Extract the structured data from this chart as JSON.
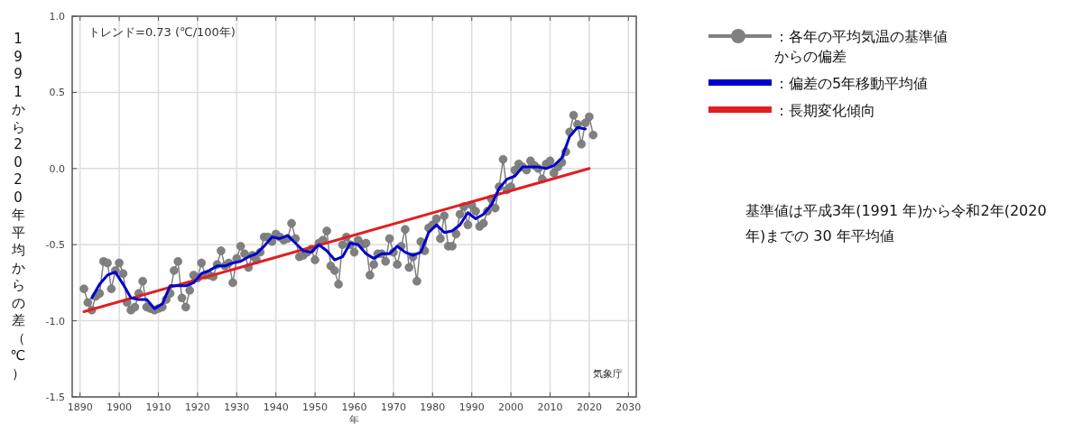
{
  "chart_data": {
    "type": "line",
    "xlabel": "年",
    "ylabel": "1991から2020年平均からの差（℃）",
    "xlim": [
      1888,
      2032
    ],
    "ylim": [
      -1.5,
      1.0
    ],
    "xticks": [
      1890,
      1900,
      1910,
      1920,
      1930,
      1940,
      1950,
      1960,
      1970,
      1980,
      1990,
      2000,
      2010,
      2020,
      2030
    ],
    "yticks": [
      {
        "value": -1.5,
        "label": "-1.5"
      },
      {
        "value": -1,
        "label": "-1.0"
      },
      {
        "value": -0.5,
        "label": "-0.5"
      },
      {
        "value": 0,
        "label": "0.0"
      },
      {
        "value": 0.5,
        "label": "0.5"
      },
      {
        "value": 1,
        "label": "1.0"
      }
    ],
    "grid": true,
    "legend": "right",
    "annotations": [
      "トレンド=0.73 (℃/100年)",
      "気象庁",
      "基準値は平成3年(1991 年)から令和2年(2020 年)までの 30 年平均値"
    ],
    "series": [
      {
        "name": "：各年の平均気温の基準値からの偏差",
        "color": "#808080",
        "marker": "circle",
        "x": [
          1891,
          1892,
          1893,
          1894,
          1895,
          1896,
          1897,
          1898,
          1899,
          1900,
          1901,
          1902,
          1903,
          1904,
          1905,
          1906,
          1907,
          1908,
          1909,
          1910,
          1911,
          1912,
          1913,
          1914,
          1915,
          1916,
          1917,
          1918,
          1919,
          1920,
          1921,
          1922,
          1923,
          1924,
          1925,
          1926,
          1927,
          1928,
          1929,
          1930,
          1931,
          1932,
          1933,
          1934,
          1935,
          1936,
          1937,
          1938,
          1939,
          1940,
          1941,
          1942,
          1943,
          1944,
          1945,
          1946,
          1947,
          1948,
          1949,
          1950,
          1951,
          1952,
          1953,
          1954,
          1955,
          1956,
          1957,
          1958,
          1959,
          1960,
          1961,
          1962,
          1963,
          1964,
          1965,
          1966,
          1967,
          1968,
          1969,
          1970,
          1971,
          1972,
          1973,
          1974,
          1975,
          1976,
          1977,
          1978,
          1979,
          1980,
          1981,
          1982,
          1983,
          1984,
          1985,
          1986,
          1987,
          1988,
          1989,
          1990,
          1991,
          1992,
          1993,
          1994,
          1995,
          1996,
          1997,
          1998,
          1999,
          2000,
          2001,
          2002,
          2003,
          2004,
          2005,
          2006,
          2007,
          2008,
          2009,
          2010,
          2011,
          2012,
          2013,
          2014,
          2015,
          2016,
          2017,
          2018,
          2019,
          2020,
          2021
        ],
        "values": [
          -0.79,
          -0.88,
          -0.93,
          -0.84,
          -0.82,
          -0.61,
          -0.62,
          -0.79,
          -0.67,
          -0.62,
          -0.69,
          -0.88,
          -0.93,
          -0.91,
          -0.82,
          -0.74,
          -0.91,
          -0.92,
          -0.93,
          -0.92,
          -0.91,
          -0.86,
          -0.82,
          -0.67,
          -0.61,
          -0.85,
          -0.91,
          -0.8,
          -0.7,
          -0.72,
          -0.62,
          -0.7,
          -0.7,
          -0.71,
          -0.63,
          -0.54,
          -0.64,
          -0.62,
          -0.75,
          -0.59,
          -0.51,
          -0.56,
          -0.65,
          -0.57,
          -0.6,
          -0.55,
          -0.45,
          -0.45,
          -0.48,
          -0.43,
          -0.45,
          -0.47,
          -0.46,
          -0.36,
          -0.46,
          -0.58,
          -0.57,
          -0.55,
          -0.53,
          -0.6,
          -0.49,
          -0.47,
          -0.41,
          -0.64,
          -0.67,
          -0.76,
          -0.5,
          -0.45,
          -0.5,
          -0.55,
          -0.47,
          -0.5,
          -0.49,
          -0.7,
          -0.63,
          -0.56,
          -0.56,
          -0.61,
          -0.46,
          -0.55,
          -0.63,
          -0.51,
          -0.4,
          -0.65,
          -0.58,
          -0.74,
          -0.48,
          -0.54,
          -0.39,
          -0.37,
          -0.33,
          -0.46,
          -0.31,
          -0.51,
          -0.51,
          -0.43,
          -0.3,
          -0.25,
          -0.37,
          -0.24,
          -0.28,
          -0.38,
          -0.36,
          -0.28,
          -0.2,
          -0.26,
          -0.12,
          0.06,
          -0.14,
          -0.12,
          -0.01,
          0.03,
          0.01,
          -0.01,
          0.05,
          0.02,
          0.0,
          -0.07,
          0.03,
          0.05,
          -0.03,
          0.01,
          0.04,
          0.11,
          0.24,
          0.35,
          0.29,
          0.16,
          0.3,
          0.34,
          0.22
        ]
      },
      {
        "name": "：偏差の5年移動平均値",
        "color": "#0000cc",
        "marker": "none",
        "x": [
          1893,
          1895,
          1897,
          1899,
          1901,
          1903,
          1905,
          1907,
          1909,
          1911,
          1913,
          1915,
          1917,
          1919,
          1921,
          1923,
          1925,
          1927,
          1929,
          1931,
          1933,
          1935,
          1937,
          1939,
          1941,
          1943,
          1945,
          1947,
          1949,
          1951,
          1953,
          1955,
          1957,
          1959,
          1961,
          1963,
          1965,
          1967,
          1969,
          1971,
          1973,
          1975,
          1977,
          1979,
          1981,
          1983,
          1985,
          1987,
          1989,
          1991,
          1993,
          1995,
          1997,
          1999,
          2001,
          2003,
          2005,
          2007,
          2009,
          2011,
          2013,
          2015,
          2017,
          2019
        ],
        "values": [
          -0.85,
          -0.76,
          -0.7,
          -0.68,
          -0.76,
          -0.85,
          -0.86,
          -0.86,
          -0.92,
          -0.89,
          -0.77,
          -0.77,
          -0.77,
          -0.75,
          -0.69,
          -0.67,
          -0.64,
          -0.64,
          -0.62,
          -0.61,
          -0.58,
          -0.56,
          -0.51,
          -0.45,
          -0.46,
          -0.44,
          -0.49,
          -0.54,
          -0.55,
          -0.5,
          -0.54,
          -0.6,
          -0.58,
          -0.49,
          -0.5,
          -0.56,
          -0.59,
          -0.56,
          -0.56,
          -0.51,
          -0.55,
          -0.57,
          -0.55,
          -0.42,
          -0.37,
          -0.42,
          -0.41,
          -0.37,
          -0.29,
          -0.33,
          -0.3,
          -0.24,
          -0.13,
          -0.07,
          -0.05,
          0.01,
          0.01,
          0.01,
          0.0,
          0.02,
          0.07,
          0.21,
          0.27,
          0.26
        ]
      },
      {
        "name": "：長期変化傾向",
        "color": "#e02020",
        "marker": "none",
        "x": [
          1891,
          2020
        ],
        "values": [
          -0.94,
          0.0
        ]
      }
    ]
  }
}
